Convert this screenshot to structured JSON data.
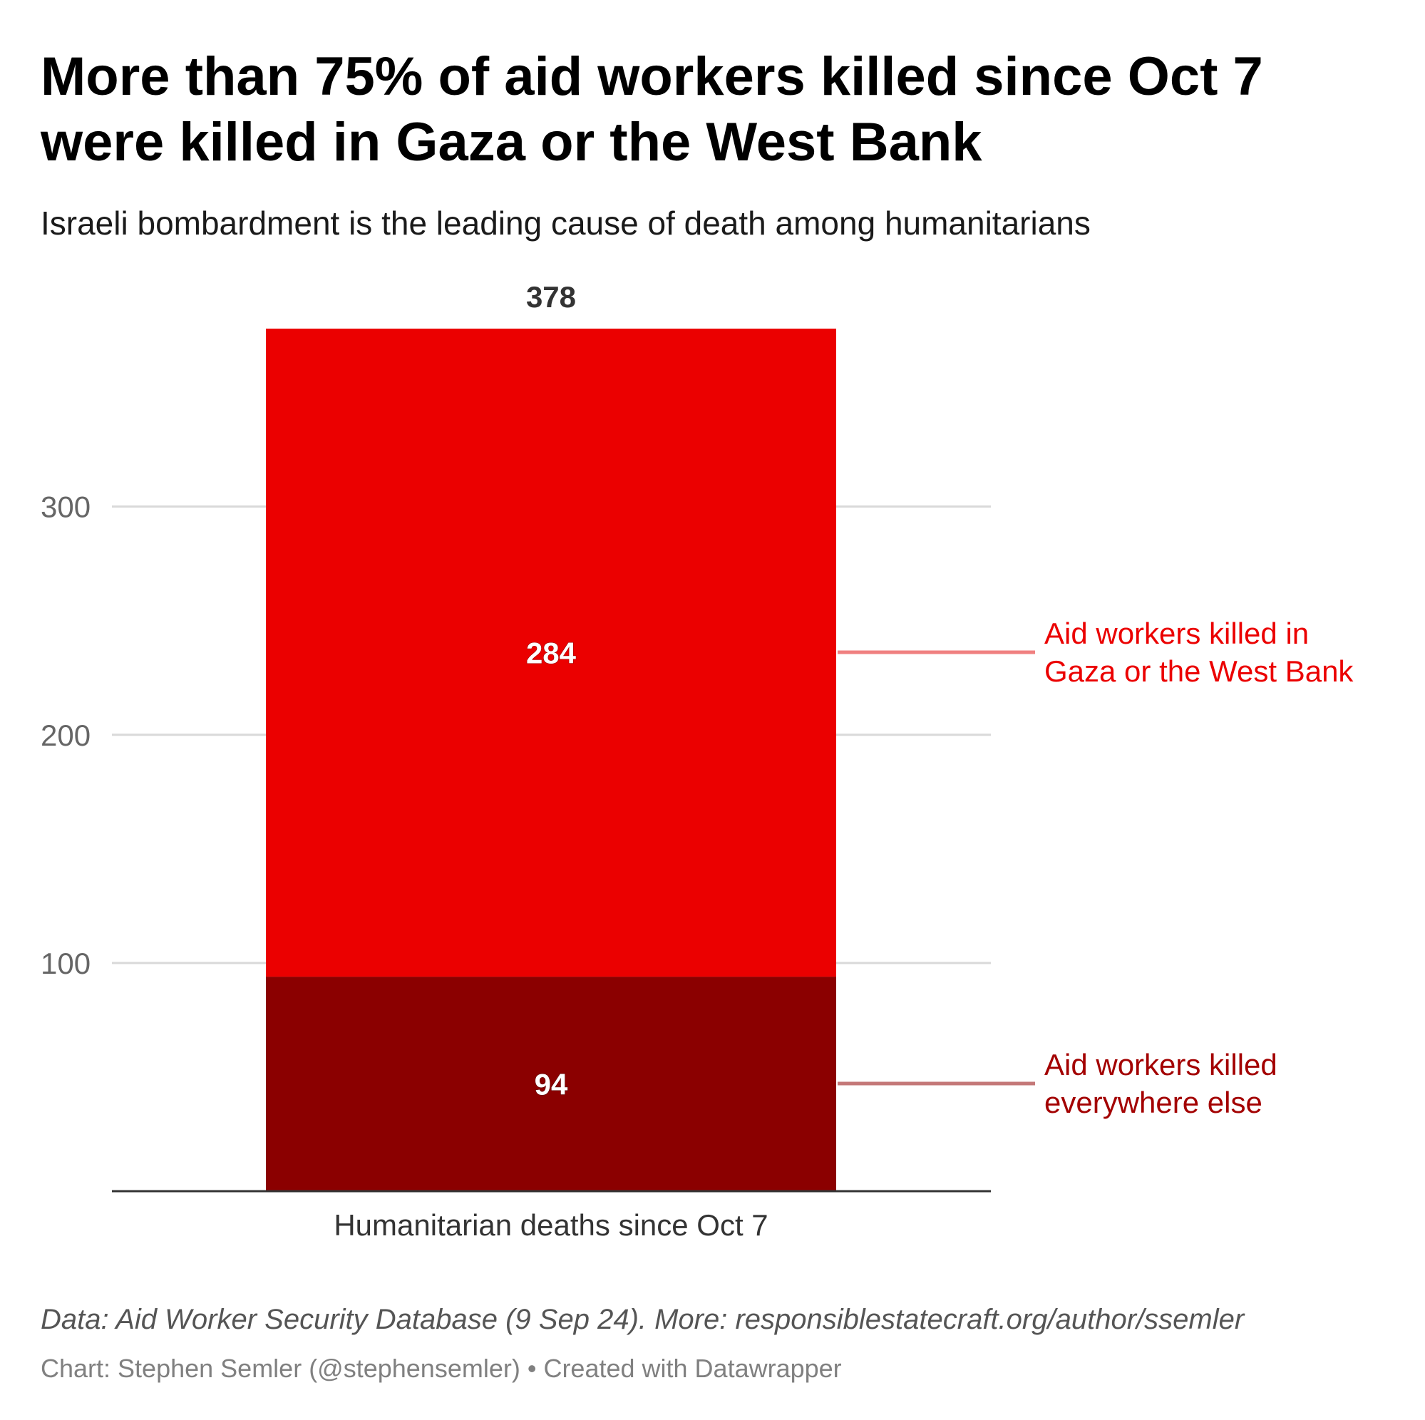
{
  "title": "More than 75% of aid workers killed since Oct 7 were killed in Gaza or the West Bank",
  "subtitle": "Israeli bombardment is the leading cause of death among humanitarians",
  "footer": {
    "source": "Data: Aid Worker Security Database (9 Sep 24). More: responsiblestatecraft.org/author/ssemler",
    "credit": "Chart: Stephen Semler (@stephensemler) • Created with Datawrapper"
  },
  "colors": {
    "gaza_westbank": "#EB0000",
    "everywhere_else": "#8B0000",
    "gaza_label": "#EB0000",
    "else_label": "#A30000",
    "gaza_connector": "#F08080",
    "else_connector": "#C47878",
    "grid": "#D9D9D9",
    "axis": "#333333",
    "tick_text": "#666666"
  },
  "chart_data": {
    "type": "bar",
    "stacked": true,
    "categories": [
      "Humanitarian deaths since Oct 7"
    ],
    "series": [
      {
        "name": "Aid workers killed everywhere else",
        "values": [
          94
        ],
        "color": "#8B0000"
      },
      {
        "name": "Aid workers killed in Gaza or the West Bank",
        "values": [
          284
        ],
        "color": "#EB0000"
      }
    ],
    "totals": [
      378
    ],
    "ylim": [
      0,
      378
    ],
    "yticks": [
      100,
      200,
      300
    ],
    "grid": true,
    "legend": "direct labels on right",
    "series_label_lines": [
      [
        "Aid workers killed",
        "everywhere else"
      ],
      [
        "Aid workers killed in",
        "Gaza or the West Bank"
      ]
    ]
  }
}
